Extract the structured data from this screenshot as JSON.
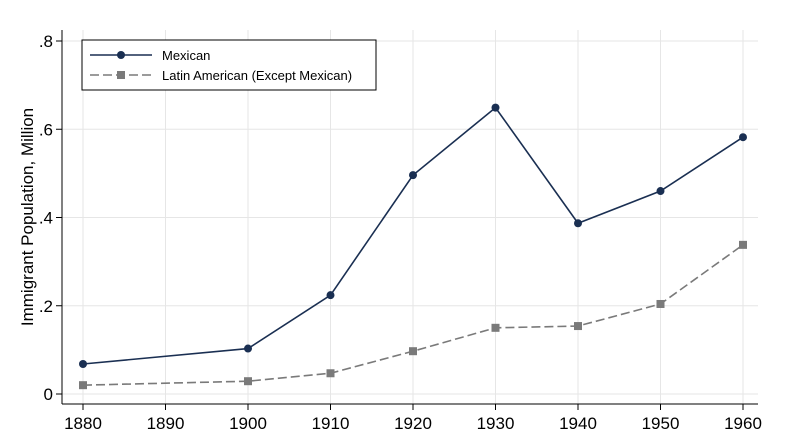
{
  "chart_data": {
    "type": "line",
    "title": "",
    "xlabel": "",
    "ylabel": "Immigrant Population, Million",
    "x_ticks": [
      "1880",
      "1890",
      "1900",
      "1910",
      "1920",
      "1930",
      "1940",
      "1950",
      "1960"
    ],
    "y_ticks": [
      "0",
      ".2",
      ".4",
      ".6",
      ".8"
    ],
    "xlim": [
      1880,
      1960
    ],
    "ylim": [
      0,
      0.8
    ],
    "grid": true,
    "legend_position": "top-left",
    "series": [
      {
        "name": "Mexican",
        "color": "#1a2f52",
        "marker": "circle",
        "line_style": "solid",
        "x": [
          1880,
          1900,
          1910,
          1920,
          1930,
          1940,
          1950,
          1960
        ],
        "values": [
          0.068,
          0.103,
          0.224,
          0.496,
          0.649,
          0.387,
          0.46,
          0.582
        ]
      },
      {
        "name": "Latin American (Except Mexican)",
        "color": "#7a7a7a",
        "marker": "square",
        "line_style": "dashed",
        "x": [
          1880,
          1900,
          1910,
          1920,
          1930,
          1940,
          1950,
          1960
        ],
        "values": [
          0.02,
          0.029,
          0.047,
          0.097,
          0.15,
          0.154,
          0.204,
          0.338
        ]
      }
    ]
  }
}
